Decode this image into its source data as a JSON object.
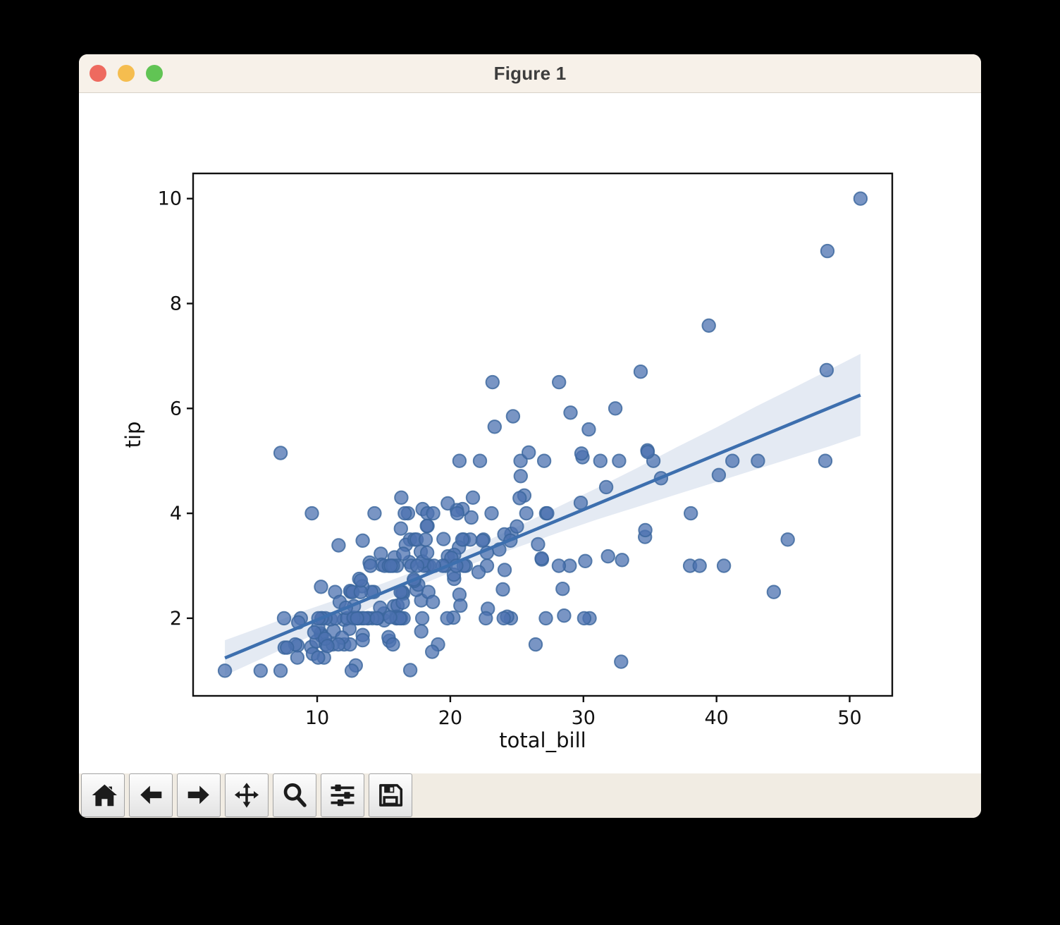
{
  "window": {
    "title": "Figure 1",
    "traffic_lights": [
      {
        "name": "close",
        "color": "#ee6a5f"
      },
      {
        "name": "minimize",
        "color": "#f5bd4f"
      },
      {
        "name": "zoom",
        "color": "#61c454"
      }
    ]
  },
  "toolbar": {
    "buttons": [
      {
        "id": "home",
        "icon": "home-icon"
      },
      {
        "id": "back",
        "icon": "arrow-left-icon"
      },
      {
        "id": "forward",
        "icon": "arrow-right-icon"
      },
      {
        "id": "pan",
        "icon": "move-icon"
      },
      {
        "id": "zoom-rect",
        "icon": "magnifier-icon"
      },
      {
        "id": "configure-subplots",
        "icon": "sliders-icon"
      },
      {
        "id": "save",
        "icon": "save-icon"
      }
    ]
  },
  "chart_data": {
    "type": "scatter",
    "title": "",
    "xlabel": "total_bill",
    "ylabel": "tip",
    "xlim": [
      0.68,
      53.2
    ],
    "ylim": [
      0.52,
      10.48
    ],
    "xticks": [
      10,
      20,
      30,
      40,
      50
    ],
    "yticks": [
      2,
      4,
      6,
      8,
      10
    ],
    "grid": false,
    "legend": null,
    "marker_color": "#4c72b0",
    "line_color": "#3d6fae",
    "band_color": "#4c72b0",
    "band_opacity": 0.15,
    "regression_line": {
      "slope": 0.105,
      "intercept": 0.92,
      "x_start": 3.07,
      "x_end": 50.81
    },
    "confidence_band": {
      "x": [
        3.07,
        6.0,
        9.0,
        12.0,
        15.0,
        18.0,
        19.8,
        22.0,
        25.0,
        28.0,
        31.0,
        34.0,
        37.0,
        40.0,
        43.0,
        46.0,
        48.5,
        50.81
      ],
      "upper": [
        1.58,
        1.85,
        2.14,
        2.4,
        2.67,
        2.96,
        3.14,
        3.39,
        3.74,
        4.11,
        4.48,
        4.86,
        5.26,
        5.64,
        6.04,
        6.42,
        6.74,
        7.04
      ],
      "lower": [
        0.91,
        1.25,
        1.6,
        1.96,
        2.32,
        2.66,
        2.85,
        3.07,
        3.35,
        3.62,
        3.88,
        4.12,
        4.36,
        4.6,
        4.84,
        5.08,
        5.28,
        5.48
      ]
    },
    "points": [
      [
        16.99,
        1.01
      ],
      [
        10.34,
        1.66
      ],
      [
        21.01,
        3.5
      ],
      [
        23.68,
        3.31
      ],
      [
        24.59,
        3.61
      ],
      [
        25.29,
        4.71
      ],
      [
        8.77,
        2.0
      ],
      [
        26.88,
        3.12
      ],
      [
        15.04,
        1.96
      ],
      [
        14.78,
        3.23
      ],
      [
        10.27,
        1.71
      ],
      [
        35.26,
        5.0
      ],
      [
        15.42,
        1.57
      ],
      [
        18.43,
        3.0
      ],
      [
        14.83,
        3.02
      ],
      [
        21.58,
        3.92
      ],
      [
        10.33,
        1.67
      ],
      [
        16.29,
        3.71
      ],
      [
        16.97,
        3.5
      ],
      [
        20.65,
        3.35
      ],
      [
        17.92,
        4.08
      ],
      [
        20.29,
        2.75
      ],
      [
        15.77,
        2.23
      ],
      [
        39.42,
        7.58
      ],
      [
        19.82,
        3.18
      ],
      [
        17.81,
        2.34
      ],
      [
        13.37,
        2.0
      ],
      [
        12.69,
        2.0
      ],
      [
        21.7,
        4.3
      ],
      [
        19.65,
        3.0
      ],
      [
        9.55,
        1.45
      ],
      [
        18.35,
        2.5
      ],
      [
        15.06,
        3.0
      ],
      [
        20.69,
        2.45
      ],
      [
        17.78,
        3.27
      ],
      [
        24.06,
        3.6
      ],
      [
        16.31,
        2.0
      ],
      [
        16.93,
        3.07
      ],
      [
        18.69,
        2.31
      ],
      [
        31.27,
        5.0
      ],
      [
        16.04,
        2.24
      ],
      [
        17.46,
        2.54
      ],
      [
        13.94,
        3.06
      ],
      [
        9.68,
        1.32
      ],
      [
        30.4,
        5.6
      ],
      [
        18.29,
        3.0
      ],
      [
        22.23,
        5.0
      ],
      [
        32.4,
        6.0
      ],
      [
        28.55,
        2.05
      ],
      [
        18.04,
        3.0
      ],
      [
        12.54,
        2.5
      ],
      [
        10.29,
        2.6
      ],
      [
        34.81,
        5.2
      ],
      [
        9.94,
        1.56
      ],
      [
        25.56,
        4.34
      ],
      [
        19.49,
        3.51
      ],
      [
        38.01,
        3.0
      ],
      [
        26.41,
        1.5
      ],
      [
        11.24,
        1.76
      ],
      [
        48.27,
        6.73
      ],
      [
        20.29,
        3.21
      ],
      [
        13.81,
        2.0
      ],
      [
        11.02,
        1.98
      ],
      [
        18.29,
        3.76
      ],
      [
        17.59,
        2.64
      ],
      [
        20.08,
        3.15
      ],
      [
        16.45,
        2.47
      ],
      [
        3.07,
        1.0
      ],
      [
        20.23,
        2.01
      ],
      [
        15.01,
        2.09
      ],
      [
        12.02,
        1.97
      ],
      [
        17.07,
        3.0
      ],
      [
        26.86,
        3.14
      ],
      [
        25.28,
        5.0
      ],
      [
        14.73,
        2.2
      ],
      [
        10.51,
        1.25
      ],
      [
        17.92,
        3.08
      ],
      [
        27.2,
        4.0
      ],
      [
        22.76,
        3.0
      ],
      [
        17.29,
        2.71
      ],
      [
        19.44,
        3.0
      ],
      [
        16.66,
        3.4
      ],
      [
        10.07,
        1.83
      ],
      [
        32.68,
        5.0
      ],
      [
        15.98,
        2.03
      ],
      [
        34.83,
        5.17
      ],
      [
        13.03,
        2.0
      ],
      [
        18.28,
        4.0
      ],
      [
        24.71,
        5.85
      ],
      [
        21.16,
        3.0
      ],
      [
        28.97,
        3.0
      ],
      [
        22.49,
        3.5
      ],
      [
        5.75,
        1.0
      ],
      [
        16.32,
        4.3
      ],
      [
        22.75,
        3.25
      ],
      [
        40.17,
        4.73
      ],
      [
        27.28,
        4.0
      ],
      [
        12.03,
        1.5
      ],
      [
        21.01,
        3.0
      ],
      [
        12.46,
        1.5
      ],
      [
        11.35,
        2.5
      ],
      [
        15.38,
        3.0
      ],
      [
        44.3,
        2.5
      ],
      [
        22.42,
        3.48
      ],
      [
        20.92,
        4.08
      ],
      [
        15.36,
        1.64
      ],
      [
        20.49,
        4.06
      ],
      [
        25.21,
        4.29
      ],
      [
        18.24,
        3.76
      ],
      [
        14.31,
        4.0
      ],
      [
        14.0,
        3.0
      ],
      [
        7.25,
        1.0
      ],
      [
        38.07,
        4.0
      ],
      [
        23.95,
        2.55
      ],
      [
        25.71,
        4.0
      ],
      [
        17.31,
        3.5
      ],
      [
        29.93,
        5.07
      ],
      [
        10.65,
        1.5
      ],
      [
        12.43,
        1.8
      ],
      [
        24.08,
        2.92
      ],
      [
        11.69,
        2.31
      ],
      [
        13.42,
        1.68
      ],
      [
        14.26,
        2.5
      ],
      [
        15.95,
        2.0
      ],
      [
        12.48,
        2.52
      ],
      [
        29.8,
        4.2
      ],
      [
        8.52,
        1.48
      ],
      [
        14.52,
        2.0
      ],
      [
        11.38,
        2.0
      ],
      [
        22.82,
        2.18
      ],
      [
        19.08,
        1.5
      ],
      [
        20.27,
        2.83
      ],
      [
        11.17,
        1.5
      ],
      [
        12.26,
        2.0
      ],
      [
        18.26,
        3.25
      ],
      [
        8.51,
        1.25
      ],
      [
        10.33,
        2.0
      ],
      [
        14.15,
        2.0
      ],
      [
        16.0,
        2.0
      ],
      [
        13.16,
        2.75
      ],
      [
        17.47,
        3.5
      ],
      [
        34.3,
        6.7
      ],
      [
        41.19,
        5.0
      ],
      [
        27.05,
        5.0
      ],
      [
        16.43,
        2.3
      ],
      [
        8.35,
        1.5
      ],
      [
        18.64,
        1.36
      ],
      [
        11.87,
        1.63
      ],
      [
        9.78,
        1.73
      ],
      [
        7.51,
        2.0
      ],
      [
        14.07,
        2.5
      ],
      [
        13.13,
        2.0
      ],
      [
        17.26,
        2.74
      ],
      [
        24.55,
        2.0
      ],
      [
        19.77,
        2.0
      ],
      [
        29.85,
        5.14
      ],
      [
        48.17,
        5.0
      ],
      [
        25.0,
        3.75
      ],
      [
        13.39,
        2.61
      ],
      [
        16.49,
        2.0
      ],
      [
        21.5,
        3.5
      ],
      [
        12.66,
        2.5
      ],
      [
        16.21,
        2.0
      ],
      [
        13.81,
        2.0
      ],
      [
        17.51,
        3.0
      ],
      [
        24.52,
        3.48
      ],
      [
        20.76,
        2.24
      ],
      [
        31.71,
        4.5
      ],
      [
        10.59,
        1.61
      ],
      [
        10.63,
        2.0
      ],
      [
        50.81,
        10.0
      ],
      [
        15.81,
        3.16
      ],
      [
        7.25,
        5.15
      ],
      [
        31.85,
        3.18
      ],
      [
        16.82,
        4.0
      ],
      [
        32.9,
        3.11
      ],
      [
        17.89,
        2.0
      ],
      [
        14.48,
        2.0
      ],
      [
        9.6,
        4.0
      ],
      [
        34.63,
        3.55
      ],
      [
        34.65,
        3.68
      ],
      [
        23.33,
        5.65
      ],
      [
        45.35,
        3.5
      ],
      [
        23.17,
        6.5
      ],
      [
        40.55,
        3.0
      ],
      [
        20.69,
        5.0
      ],
      [
        20.9,
        3.5
      ],
      [
        30.46,
        2.0
      ],
      [
        18.15,
        3.5
      ],
      [
        23.1,
        4.0
      ],
      [
        15.69,
        1.5
      ],
      [
        19.81,
        4.19
      ],
      [
        28.44,
        2.56
      ],
      [
        15.48,
        2.02
      ],
      [
        16.58,
        4.0
      ],
      [
        7.56,
        1.44
      ],
      [
        10.34,
        2.0
      ],
      [
        43.11,
        5.0
      ],
      [
        13.0,
        2.0
      ],
      [
        13.51,
        2.0
      ],
      [
        18.71,
        4.0
      ],
      [
        12.74,
        2.01
      ],
      [
        13.0,
        2.0
      ],
      [
        16.4,
        2.5
      ],
      [
        20.53,
        4.0
      ],
      [
        16.47,
        3.23
      ],
      [
        26.59,
        3.41
      ],
      [
        38.73,
        3.0
      ],
      [
        24.27,
        2.03
      ],
      [
        12.76,
        2.23
      ],
      [
        30.06,
        2.0
      ],
      [
        25.89,
        5.16
      ],
      [
        48.33,
        9.0
      ],
      [
        13.27,
        2.5
      ],
      [
        28.17,
        6.5
      ],
      [
        12.9,
        1.1
      ],
      [
        28.15,
        3.0
      ],
      [
        11.59,
        1.5
      ],
      [
        7.74,
        1.44
      ],
      [
        30.14,
        3.09
      ],
      [
        12.16,
        2.2
      ],
      [
        13.42,
        3.48
      ],
      [
        8.58,
        1.92
      ],
      [
        15.98,
        3.0
      ],
      [
        13.42,
        1.58
      ],
      [
        16.27,
        2.5
      ],
      [
        10.09,
        2.0
      ],
      [
        20.45,
        3.0
      ],
      [
        13.28,
        2.72
      ],
      [
        22.12,
        2.88
      ],
      [
        24.01,
        2.0
      ],
      [
        15.69,
        3.0
      ],
      [
        11.61,
        3.39
      ],
      [
        10.77,
        1.47
      ],
      [
        15.53,
        3.0
      ],
      [
        10.07,
        1.25
      ],
      [
        12.6,
        1.0
      ],
      [
        32.83,
        1.17
      ],
      [
        35.83,
        4.67
      ],
      [
        29.03,
        5.92
      ],
      [
        27.18,
        2.0
      ],
      [
        22.67,
        2.0
      ],
      [
        17.82,
        1.75
      ],
      [
        18.78,
        3.0
      ]
    ]
  }
}
